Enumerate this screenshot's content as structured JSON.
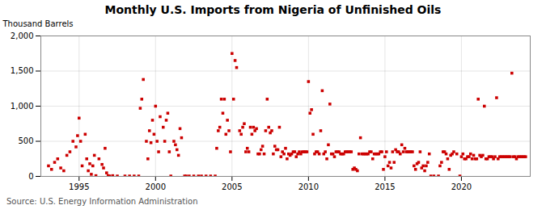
{
  "chart_data": {
    "type": "scatter",
    "title": "Monthly U.S. Imports from Nigeria of Unfinished Oils",
    "ylabel": "Thousand Barrels",
    "caption": "Source: U.S. Energy Information Administration",
    "color": "#cc0000",
    "marker": "square",
    "grid": true,
    "xlim": [
      1992.5,
      2024.5
    ],
    "ylim": [
      0,
      2000
    ],
    "xticks": [
      1995,
      2000,
      2005,
      2010,
      2015,
      2020
    ],
    "yticks": [
      0,
      500,
      {
        "value": 1000,
        "label": "1,000"
      },
      {
        "value": 1500,
        "label": "1,500"
      },
      {
        "value": 2000,
        "label": "2,000"
      }
    ],
    "x": [
      1993.0,
      1993.2,
      1993.4,
      1993.6,
      1993.8,
      1994.0,
      1994.2,
      1994.4,
      1994.6,
      1994.8,
      1994.9,
      1995.0,
      1995.1,
      1995.2,
      1995.4,
      1995.5,
      1995.6,
      1995.7,
      1995.8,
      1995.9,
      1996.0,
      1996.1,
      1996.3,
      1996.5,
      1996.6,
      1996.7,
      1996.8,
      1996.9,
      1997.0,
      1997.2,
      1997.5,
      1998.0,
      1998.3,
      1998.6,
      1998.9,
      1999.0,
      1999.1,
      1999.2,
      1999.4,
      1999.5,
      1999.6,
      1999.7,
      1999.8,
      1999.9,
      2000.0,
      2000.1,
      2000.2,
      2000.3,
      2000.5,
      2000.6,
      2000.7,
      2000.8,
      2000.9,
      2001.0,
      2001.2,
      2001.3,
      2001.4,
      2001.5,
      2001.6,
      2001.7,
      2001.9,
      2002.0,
      2002.2,
      2002.5,
      2002.8,
      2003.0,
      2003.3,
      2003.6,
      2003.9,
      2004.0,
      2004.1,
      2004.2,
      2004.3,
      2004.4,
      2004.5,
      2004.6,
      2004.7,
      2004.8,
      2004.9,
      2005.0,
      2005.1,
      2005.2,
      2005.3,
      2005.5,
      2005.6,
      2005.7,
      2005.8,
      2005.9,
      2006.0,
      2006.1,
      2006.2,
      2006.3,
      2006.4,
      2006.5,
      2006.6,
      2006.7,
      2006.8,
      2006.9,
      2007.0,
      2007.1,
      2007.2,
      2007.3,
      2007.4,
      2007.5,
      2007.6,
      2007.7,
      2007.8,
      2007.9,
      2008.0,
      2008.1,
      2008.2,
      2008.3,
      2008.4,
      2008.5,
      2008.6,
      2008.7,
      2008.8,
      2008.9,
      2009.0,
      2009.1,
      2009.2,
      2009.3,
      2009.4,
      2009.5,
      2009.6,
      2009.7,
      2009.8,
      2009.9,
      2010.0,
      2010.1,
      2010.2,
      2010.3,
      2010.4,
      2010.5,
      2010.6,
      2010.7,
      2010.8,
      2010.9,
      2011.0,
      2011.1,
      2011.2,
      2011.3,
      2011.4,
      2011.5,
      2011.6,
      2011.7,
      2011.8,
      2011.9,
      2012.0,
      2012.1,
      2012.2,
      2012.3,
      2012.4,
      2012.5,
      2012.6,
      2012.7,
      2012.8,
      2012.9,
      2013.0,
      2013.1,
      2013.2,
      2013.3,
      2013.4,
      2013.5,
      2013.6,
      2013.7,
      2013.8,
      2013.9,
      2014.0,
      2014.1,
      2014.2,
      2014.3,
      2014.4,
      2014.5,
      2014.6,
      2014.7,
      2014.8,
      2014.9,
      2015.0,
      2015.1,
      2015.2,
      2015.3,
      2015.4,
      2015.5,
      2015.6,
      2015.7,
      2015.8,
      2015.9,
      2016.0,
      2016.1,
      2016.2,
      2016.3,
      2016.4,
      2016.5,
      2016.6,
      2016.7,
      2016.8,
      2016.9,
      2017.0,
      2017.1,
      2017.2,
      2017.3,
      2017.4,
      2017.5,
      2017.6,
      2017.7,
      2017.8,
      2017.9,
      2018.0,
      2018.2,
      2018.5,
      2018.6,
      2018.7,
      2018.8,
      2018.9,
      2019.0,
      2019.1,
      2019.2,
      2019.3,
      2019.4,
      2019.5,
      2019.7,
      2019.9,
      2020.0,
      2020.1,
      2020.2,
      2020.3,
      2020.4,
      2020.5,
      2020.6,
      2020.7,
      2020.8,
      2020.9,
      2021.0,
      2021.1,
      2021.2,
      2021.3,
      2021.4,
      2021.5,
      2021.6,
      2021.7,
      2021.8,
      2021.9,
      2022.0,
      2022.1,
      2022.2,
      2022.3,
      2022.4,
      2022.5,
      2022.6,
      2022.7,
      2022.8,
      2022.9,
      2023.0,
      2023.1,
      2023.2,
      2023.3,
      2023.4,
      2023.5,
      2023.6,
      2023.7,
      2023.8,
      2023.9,
      2024.0,
      2024.1,
      2024.2
    ],
    "values": [
      150,
      100,
      200,
      250,
      120,
      80,
      300,
      350,
      500,
      420,
      580,
      830,
      500,
      150,
      600,
      250,
      80,
      180,
      30,
      150,
      300,
      10,
      250,
      170,
      120,
      400,
      50,
      10,
      5,
      10,
      5,
      5,
      5,
      5,
      5,
      970,
      1100,
      1380,
      500,
      250,
      650,
      480,
      800,
      600,
      1000,
      500,
      350,
      850,
      700,
      500,
      800,
      900,
      350,
      5,
      500,
      450,
      380,
      300,
      680,
      550,
      5,
      5,
      5,
      5,
      5,
      5,
      5,
      5,
      5,
      400,
      650,
      700,
      1100,
      900,
      1100,
      600,
      800,
      650,
      350,
      1750,
      1100,
      1650,
      1550,
      650,
      600,
      700,
      750,
      350,
      400,
      350,
      700,
      600,
      700,
      650,
      680,
      320,
      320,
      380,
      430,
      320,
      650,
      1100,
      700,
      620,
      650,
      320,
      430,
      380,
      380,
      700,
      280,
      350,
      320,
      400,
      250,
      320,
      300,
      320,
      350,
      350,
      280,
      320,
      350,
      320,
      350,
      350,
      350,
      350,
      1350,
      900,
      950,
      600,
      320,
      350,
      350,
      320,
      650,
      1220,
      320,
      350,
      250,
      450,
      1030,
      320,
      320,
      280,
      350,
      350,
      350,
      320,
      320,
      320,
      350,
      350,
      350,
      350,
      350,
      100,
      120,
      100,
      80,
      320,
      550,
      320,
      320,
      320,
      320,
      320,
      350,
      350,
      250,
      320,
      320,
      320,
      320,
      350,
      350,
      100,
      280,
      350,
      150,
      200,
      120,
      350,
      200,
      380,
      350,
      350,
      320,
      450,
      350,
      400,
      350,
      350,
      350,
      350,
      350,
      150,
      100,
      180,
      200,
      350,
      120,
      150,
      80,
      150,
      200,
      320,
      5,
      5,
      5,
      150,
      200,
      350,
      350,
      320,
      250,
      100,
      300,
      320,
      350,
      320,
      5,
      280,
      320,
      250,
      250,
      280,
      280,
      320,
      250,
      300,
      250,
      250,
      1100,
      300,
      280,
      300,
      1000,
      250,
      250,
      280,
      280,
      280,
      250,
      280,
      1120,
      250,
      280,
      280,
      280,
      280,
      280,
      280,
      280,
      280,
      1470,
      280,
      280,
      250,
      280,
      280,
      280,
      280,
      280,
      280
    ]
  }
}
